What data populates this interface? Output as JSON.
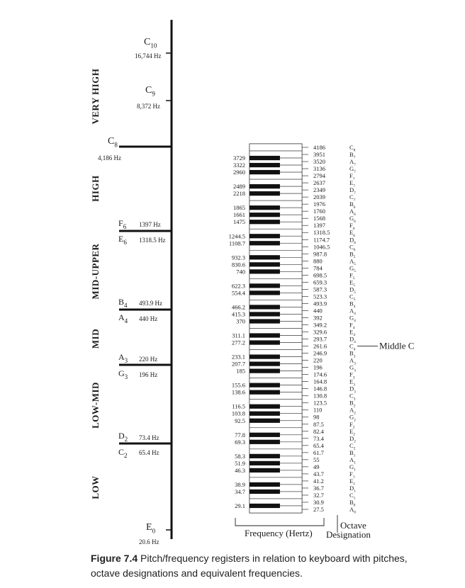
{
  "registers": [
    {
      "label": "VERY HIGH"
    },
    {
      "label": "HIGH"
    },
    {
      "label": "MID-UPPER"
    },
    {
      "label": "MID"
    },
    {
      "label": "LOW-MID"
    },
    {
      "label": "LOW"
    }
  ],
  "scale_marks": [
    {
      "id": "c10",
      "note": "C",
      "sub": "10",
      "freq": "16,744 Hz"
    },
    {
      "id": "c9",
      "note": "C",
      "sub": "9",
      "freq": "8,372 Hz"
    },
    {
      "id": "c8",
      "note": "C",
      "sub": "8",
      "freq": "4,186 Hz"
    },
    {
      "id": "f6",
      "note": "F",
      "sub": "6",
      "freq": "1397 Hz"
    },
    {
      "id": "e6",
      "note": "E",
      "sub": "6",
      "freq": "1318.5 Hz"
    },
    {
      "id": "b4",
      "note": "B",
      "sub": "4",
      "freq": "493.9 Hz"
    },
    {
      "id": "a4",
      "note": "A",
      "sub": "4",
      "freq": "440 Hz"
    },
    {
      "id": "a3",
      "note": "A",
      "sub": "3",
      "freq": "220 Hz"
    },
    {
      "id": "g3",
      "note": "G",
      "sub": "3",
      "freq": "196 Hz"
    },
    {
      "id": "d2",
      "note": "D",
      "sub": "2",
      "freq": "73.4 Hz"
    },
    {
      "id": "c2",
      "note": "C",
      "sub": "2",
      "freq": "65.4 Hz"
    },
    {
      "id": "e0",
      "note": "E",
      "sub": "0",
      "freq": "20.6 Hz"
    }
  ],
  "white_keys": [
    {
      "freq": "4186",
      "note": "C",
      "oct": "8"
    },
    {
      "freq": "3951",
      "note": "B",
      "oct": "7"
    },
    {
      "freq": "3520",
      "note": "A",
      "oct": "7"
    },
    {
      "freq": "3136",
      "note": "G",
      "oct": "7"
    },
    {
      "freq": "2794",
      "note": "F",
      "oct": "7"
    },
    {
      "freq": "2637",
      "note": "E",
      "oct": "7"
    },
    {
      "freq": "2349",
      "note": "D",
      "oct": "7"
    },
    {
      "freq": "2039",
      "note": "C",
      "oct": "7"
    },
    {
      "freq": "1976",
      "note": "B",
      "oct": "6"
    },
    {
      "freq": "1760",
      "note": "A",
      "oct": "6"
    },
    {
      "freq": "1568",
      "note": "G",
      "oct": "6"
    },
    {
      "freq": "1397",
      "note": "F",
      "oct": "6"
    },
    {
      "freq": "1318.5",
      "note": "E",
      "oct": "6"
    },
    {
      "freq": "1174.7",
      "note": "D",
      "oct": "6"
    },
    {
      "freq": "1046.5",
      "note": "C",
      "oct": "6"
    },
    {
      "freq": "987.8",
      "note": "B",
      "oct": "5"
    },
    {
      "freq": "880",
      "note": "A",
      "oct": "5"
    },
    {
      "freq": "784",
      "note": "G",
      "oct": "5"
    },
    {
      "freq": "698.5",
      "note": "F",
      "oct": "5"
    },
    {
      "freq": "659.3",
      "note": "E",
      "oct": "5"
    },
    {
      "freq": "587.3",
      "note": "D",
      "oct": "5"
    },
    {
      "freq": "523.3",
      "note": "C",
      "oct": "5"
    },
    {
      "freq": "493.9",
      "note": "B",
      "oct": "4"
    },
    {
      "freq": "440",
      "note": "A",
      "oct": "4"
    },
    {
      "freq": "392",
      "note": "G",
      "oct": "4"
    },
    {
      "freq": "349.2",
      "note": "F",
      "oct": "4"
    },
    {
      "freq": "329.6",
      "note": "E",
      "oct": "4"
    },
    {
      "freq": "293.7",
      "note": "D",
      "oct": "4"
    },
    {
      "freq": "261.6",
      "note": "C",
      "oct": "4"
    },
    {
      "freq": "246.9",
      "note": "B",
      "oct": "3"
    },
    {
      "freq": "220",
      "note": "A",
      "oct": "3"
    },
    {
      "freq": "196",
      "note": "G",
      "oct": "3"
    },
    {
      "freq": "174.6",
      "note": "F",
      "oct": "3"
    },
    {
      "freq": "164.8",
      "note": "E",
      "oct": "3"
    },
    {
      "freq": "146.8",
      "note": "D",
      "oct": "3"
    },
    {
      "freq": "130.8",
      "note": "C",
      "oct": "3"
    },
    {
      "freq": "123.5",
      "note": "B",
      "oct": "2"
    },
    {
      "freq": "110",
      "note": "A",
      "oct": "2"
    },
    {
      "freq": "98",
      "note": "G",
      "oct": "2"
    },
    {
      "freq": "87.5",
      "note": "F",
      "oct": "2"
    },
    {
      "freq": "82.4",
      "note": "E",
      "oct": "2"
    },
    {
      "freq": "73.4",
      "note": "D",
      "oct": "2"
    },
    {
      "freq": "65.4",
      "note": "C",
      "oct": "2"
    },
    {
      "freq": "61.7",
      "note": "B",
      "oct": "1"
    },
    {
      "freq": "55",
      "note": "A",
      "oct": "1"
    },
    {
      "freq": "49",
      "note": "G",
      "oct": "1"
    },
    {
      "freq": "43.7",
      "note": "F",
      "oct": "1"
    },
    {
      "freq": "41.2",
      "note": "E",
      "oct": "1"
    },
    {
      "freq": "36.7",
      "note": "D",
      "oct": "1"
    },
    {
      "freq": "32.7",
      "note": "C",
      "oct": "1"
    },
    {
      "freq": "30.9",
      "note": "B",
      "oct": "0"
    },
    {
      "freq": "27.5",
      "note": "A",
      "oct": "0"
    }
  ],
  "black_keys": [
    "3729",
    "3322",
    "2960",
    "2489",
    "2218",
    "1865",
    "1661",
    "1475",
    "1244.5",
    "1108.7",
    "932.3",
    "830.6",
    "740",
    "622.3",
    "554.4",
    "466.2",
    "415.3",
    "370",
    "311.1",
    "277.2",
    "233.1",
    "207.7",
    "185",
    "155.6",
    "138.6",
    "116.5",
    "103.8",
    "92.5",
    "77.8",
    "69.3",
    "58.3",
    "51.9",
    "46.3",
    "38.9",
    "34.7",
    "29.1"
  ],
  "annotations": {
    "middle_c": "Middle C",
    "frequency_label": "Frequency (Hertz)",
    "octave_label_1": "Octave",
    "octave_label_2": "Designation"
  },
  "caption": {
    "figure": "Figure 7.4",
    "text": "Pitch/frequency registers in relation to keyboard with pitches, octave designations and equivalent frequencies."
  }
}
